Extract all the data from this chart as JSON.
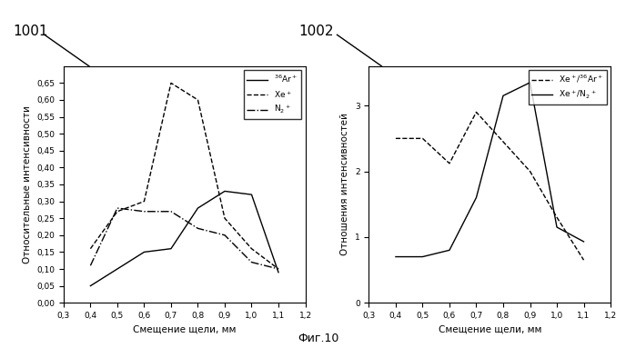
{
  "left_x": [
    0.4,
    0.5,
    0.6,
    0.7,
    0.8,
    0.9,
    1.0,
    1.1
  ],
  "left_Ar": [
    0.05,
    0.1,
    0.15,
    0.16,
    0.28,
    0.33,
    0.32,
    0.09
  ],
  "left_Xe": [
    0.16,
    0.27,
    0.3,
    0.65,
    0.6,
    0.25,
    0.16,
    0.1
  ],
  "left_N2": [
    0.11,
    0.28,
    0.27,
    0.27,
    0.22,
    0.2,
    0.12,
    0.1
  ],
  "right_x": [
    0.4,
    0.5,
    0.6,
    0.7,
    0.8,
    0.9,
    1.0,
    1.1
  ],
  "right_XeAr": [
    2.5,
    2.5,
    2.12,
    2.9,
    2.45,
    2.0,
    1.3,
    0.65
  ],
  "right_XeN2": [
    0.7,
    0.7,
    0.8,
    1.6,
    3.15,
    3.35,
    1.15,
    0.93
  ],
  "left_ylabel": "Относительные интенсивности",
  "right_ylabel": "Отношения интенсивностей",
  "xlabel": "Смещение щели, мм",
  "caption": "Фиг.10",
  "label_Ar": "$^{36}$Ar$^+$",
  "label_Xe": "Xe$^+$",
  "label_N2": "N$_2$$^+$",
  "label_XeAr": "Xe$^+$/$^{36}$Ar$^+$",
  "label_XeN2": "Xe$^+$/N$_2$$^+$",
  "left_ylim": [
    0.0,
    0.7
  ],
  "right_ylim": [
    0.0,
    3.6
  ],
  "xlim": [
    0.3,
    1.2
  ],
  "left_yticks": [
    0.0,
    0.05,
    0.1,
    0.15,
    0.2,
    0.25,
    0.3,
    0.35,
    0.4,
    0.45,
    0.5,
    0.55,
    0.6,
    0.65
  ],
  "right_yticks": [
    0,
    1,
    2,
    3
  ],
  "xticks": [
    0.3,
    0.4,
    0.5,
    0.6,
    0.7,
    0.8,
    0.9,
    1.0,
    1.1,
    1.2
  ],
  "label_1001": "1001",
  "label_1002": "1002",
  "bg_color": "#ffffff",
  "line_color": "#000000"
}
